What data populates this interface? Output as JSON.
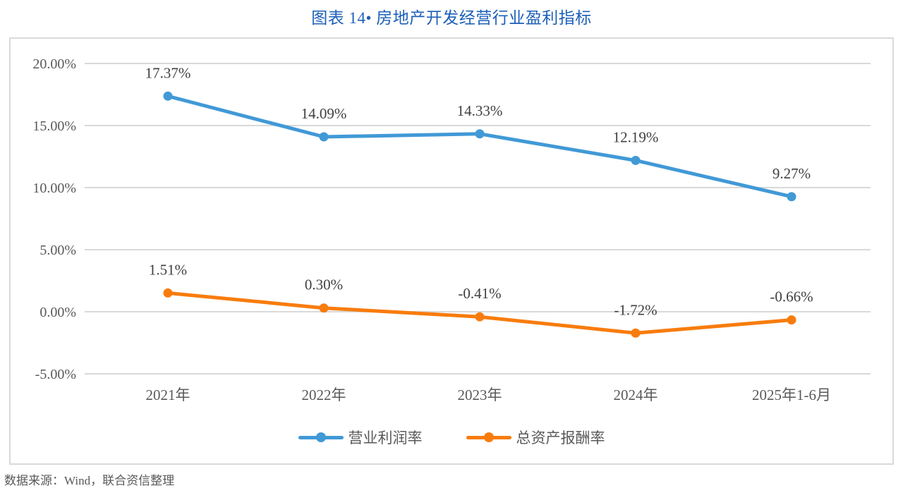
{
  "title": "图表 14• 房地产开发经营行业盈利指标",
  "source_note": "数据来源：Wind，联合资信整理",
  "colors": {
    "title": "#1d5fb8",
    "gridline": "#d9d9d9",
    "axis_label": "#595959",
    "data_label": "#3f3f3f",
    "series_blue": "#4199d6",
    "series_orange": "#f87c0d"
  },
  "chart_data": {
    "type": "line",
    "title": "图表 14• 房地产开发经营行业盈利指标",
    "categories": [
      "2021年",
      "2022年",
      "2023年",
      "2024年",
      "2025年1-6月"
    ],
    "series": [
      {
        "name": "营业利润率",
        "key": "operating-profit-margin",
        "color": "#4199d6",
        "values": [
          17.37,
          14.09,
          14.33,
          12.19,
          9.27
        ],
        "labels": [
          "17.37%",
          "14.09%",
          "14.33%",
          "12.19%",
          "9.27%"
        ]
      },
      {
        "name": "总资产报酬率",
        "key": "total-asset-return",
        "color": "#f87c0d",
        "values": [
          1.51,
          0.3,
          -0.41,
          -1.72,
          -0.66
        ],
        "labels": [
          "1.51%",
          "0.30%",
          "-0.41%",
          "-1.72%",
          "-0.66%"
        ]
      }
    ],
    "y_axis": {
      "min": -5,
      "max": 20,
      "step": 5,
      "ticks": [
        20,
        15,
        10,
        5,
        0,
        -5
      ],
      "tick_labels": [
        "20.00%",
        "15.00%",
        "10.00%",
        "5.00%",
        "0.00%",
        "-5.00%"
      ]
    },
    "grid": true,
    "legend_position": "bottom"
  }
}
